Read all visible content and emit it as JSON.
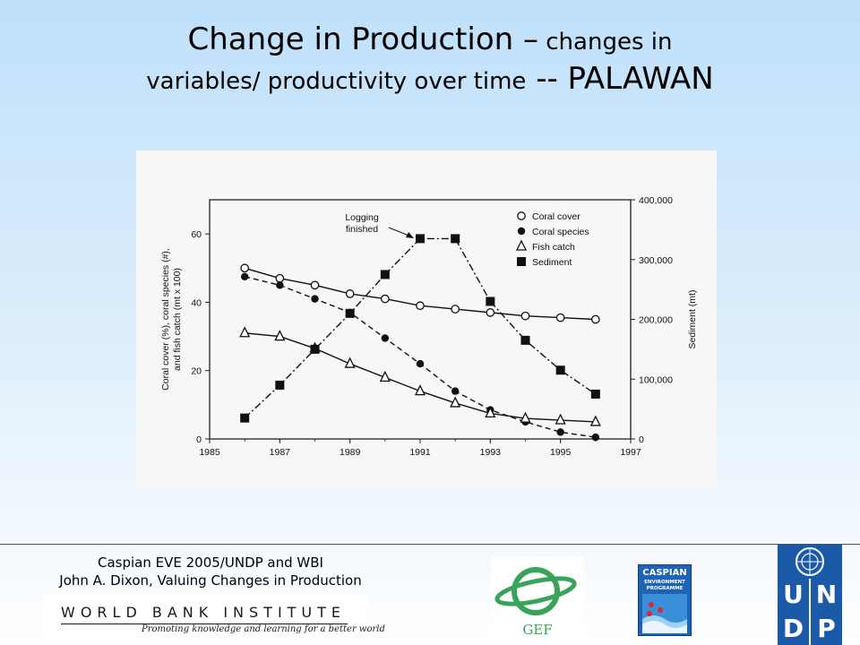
{
  "slide": {
    "title_part1": "Change in Production –",
    "title_part2": " changes in",
    "title_part3": "variables/ productivity over time",
    "title_part4": " -- PALAWAN"
  },
  "chart_data": {
    "type": "line",
    "x": [
      1986,
      1987,
      1988,
      1989,
      1990,
      1991,
      1992,
      1993,
      1994,
      1995,
      1996
    ],
    "xlim": [
      1985,
      1997
    ],
    "xticks": [
      "1985",
      "1987",
      "1989",
      "1991",
      "1993",
      "1995",
      "1997"
    ],
    "ylim_left": [
      0,
      70
    ],
    "yticks_left": [
      "0",
      "20",
      "40",
      "60"
    ],
    "ylabel_left_lines": [
      "Coral cover (%), coral species (#),",
      "and fish catch (mt x 100)"
    ],
    "ylim_right": [
      0,
      400000
    ],
    "yticks_right": [
      "0",
      "100,000",
      "200,000",
      "300,000",
      "400,000"
    ],
    "ylabel_right": "Sediment (mt)",
    "series": [
      {
        "name": "Coral cover",
        "axis": "left",
        "marker": "open-circle",
        "line": "solid",
        "values": [
          50,
          47,
          45,
          42.5,
          41,
          39,
          38,
          37,
          36,
          35.5,
          35
        ]
      },
      {
        "name": "Coral species",
        "axis": "left",
        "marker": "filled-circle",
        "line": "dashed",
        "values": [
          47.5,
          45,
          41,
          37,
          29.5,
          22,
          14,
          8.5,
          5,
          2,
          0.5
        ]
      },
      {
        "name": "Fish catch",
        "axis": "left",
        "marker": "open-triangle",
        "line": "solid",
        "values": [
          31,
          30,
          26.5,
          22,
          18,
          14,
          10.5,
          7.5,
          6,
          5.5,
          5
        ]
      },
      {
        "name": "Sediment",
        "axis": "right",
        "marker": "filled-square",
        "line": "dash-dot",
        "values": [
          35000,
          90000,
          150000,
          210000,
          275000,
          335000,
          335000,
          230000,
          165000,
          115000,
          75000
        ]
      }
    ],
    "annotation": {
      "line1": "Logging",
      "line2": "finished"
    },
    "legend_position": "top-right"
  },
  "footer": {
    "credit_line1": "Caspian EVE 2005/UNDP and WBI",
    "credit_line2": "John A. Dixon, Valuing Changes in Production",
    "wbi_name": "WORLD BANK INSTITUTE",
    "wbi_tagline": "Promoting knowledge and learning for a better world",
    "gef_label": "GEF",
    "cep_line1": "CASPIAN",
    "cep_line2": "ENVIRONMENT",
    "cep_line3": "PROGRAMME",
    "undp_letters": [
      "U",
      "N",
      "D",
      "P"
    ]
  },
  "colors": {
    "background_top": "#bfe0fb",
    "gef_green": "#3aa35a",
    "undp_blue": "#1a5aa8",
    "cep_blue": "#1f63b4"
  }
}
